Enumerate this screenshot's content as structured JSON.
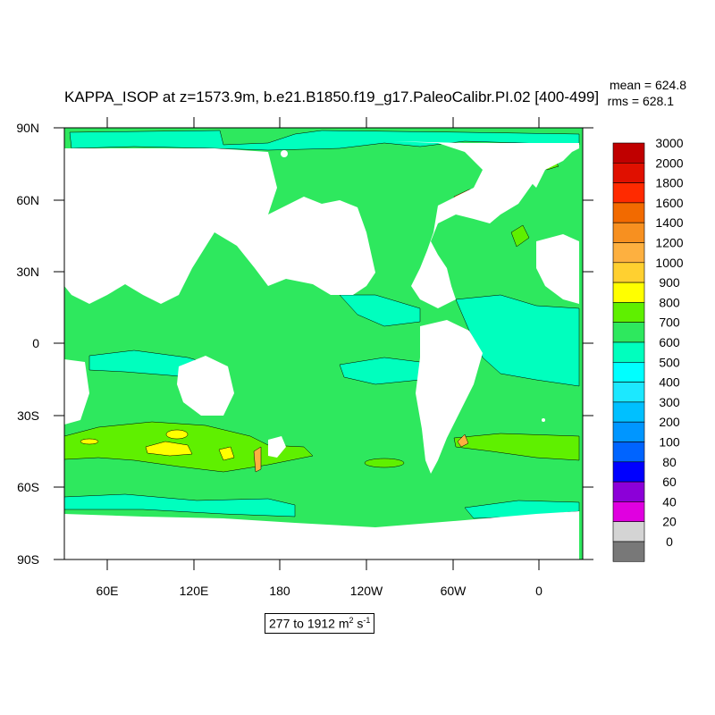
{
  "title": "KAPPA_ISOP at z=1573.9m, b.e21.B1850.f19_g17.PaleoCalibr.PI.02 [400-499]",
  "stats": {
    "mean": "mean = 624.8",
    "rms": "rms = 628.1"
  },
  "axes": {
    "y_ticks": [
      "90N",
      "60N",
      "30N",
      "0",
      "30S",
      "60S",
      "90S"
    ],
    "x_ticks": [
      "60E",
      "120E",
      "180",
      "120W",
      "60W",
      "0"
    ]
  },
  "range_note": {
    "text": "277 to 1912 m",
    "sup1": "2",
    "mid": " s",
    "sup2": "-1"
  },
  "colorbar": {
    "labels": [
      "3000",
      "2000",
      "1800",
      "1600",
      "1400",
      "1200",
      "1000",
      "900",
      "800",
      "700",
      "600",
      "500",
      "400",
      "300",
      "200",
      "100",
      "80",
      "60",
      "40",
      "20",
      "0"
    ],
    "colors": [
      "#c00000",
      "#e01000",
      "#ff2a00",
      "#f26a00",
      "#f79020",
      "#fdb040",
      "#ffd030",
      "#ffff00",
      "#5ff000",
      "#2ee85e",
      "#00ffbe",
      "#00ffff",
      "#1ce8ff",
      "#00c0ff",
      "#0096ff",
      "#0064ff",
      "#0000ff",
      "#8c00d8",
      "#e000e0",
      "#d4d4d4",
      "#787878"
    ]
  },
  "colors": {
    "ocean": "#2ee85e",
    "land": "#ffffff",
    "band_500_600": "#00ffbe",
    "band_700_800": "#5ff000",
    "band_800_900": "#ffff00"
  }
}
